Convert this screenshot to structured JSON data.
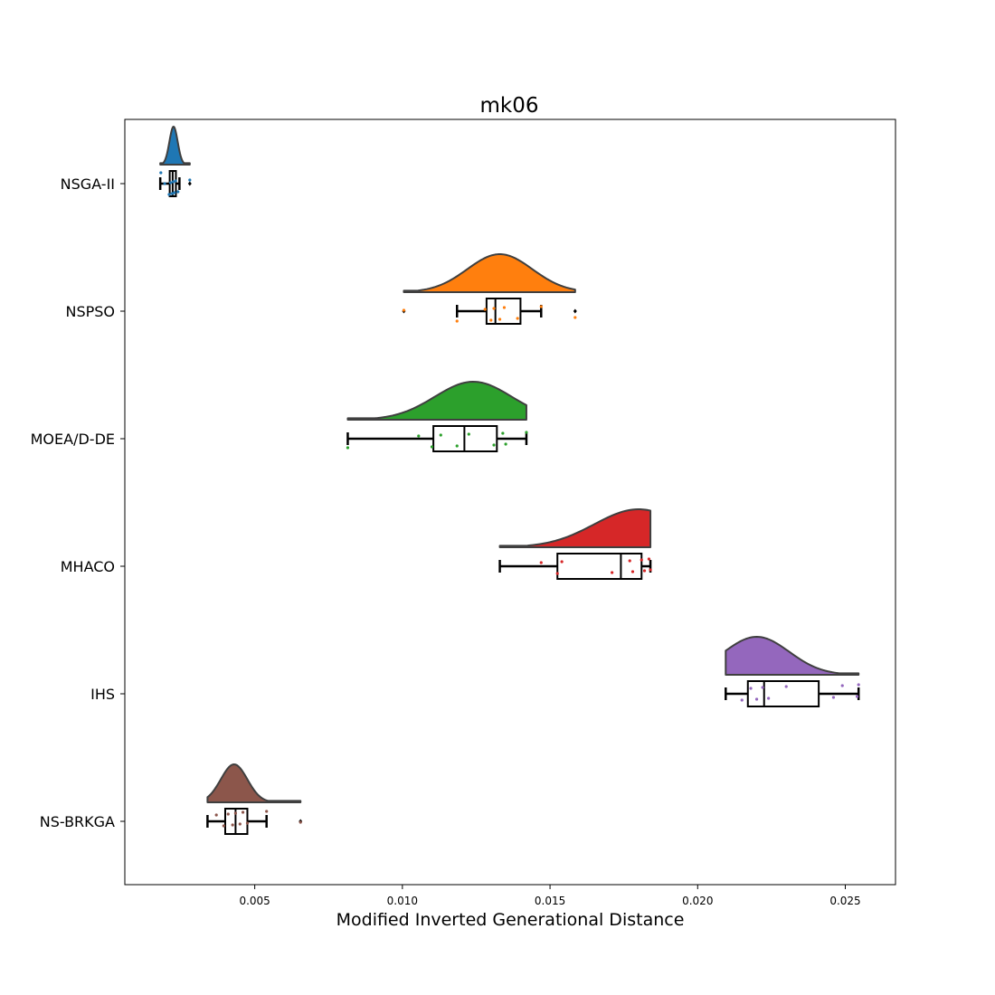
{
  "chart_data": {
    "type": "raincloud",
    "title": "mk06",
    "xlabel": "Modified Inverted Generational Distance",
    "ylabel": "",
    "xlim": [
      0.0006,
      0.0267
    ],
    "x_ticks": [
      0.005,
      0.01,
      0.015,
      0.02,
      0.025
    ],
    "x_tick_labels": [
      "0.005",
      "0.010",
      "0.015",
      "0.020",
      "0.025"
    ],
    "grid": false,
    "series": [
      {
        "name": "NSGA-II",
        "color": "#1f77b4",
        "box": {
          "whisker_low": 0.0018,
          "q1": 0.00212,
          "median": 0.00222,
          "q3": 0.00233,
          "whisker_high": 0.00245
        },
        "outliers": [
          0.0028
        ],
        "violin": {
          "min": 0.0018,
          "max": 0.0028,
          "peak": 0.00225,
          "bw": 0.00014
        },
        "points": [
          0.00182,
          0.00195,
          0.0021,
          0.00215,
          0.0022,
          0.00224,
          0.00228,
          0.00232,
          0.0024,
          0.0028
        ]
      },
      {
        "name": "NSPSO",
        "color": "#ff7f0e",
        "box": {
          "whisker_low": 0.01185,
          "q1": 0.01285,
          "median": 0.01315,
          "q3": 0.014,
          "whisker_high": 0.0147
        },
        "outliers": [
          0.01005,
          0.01585
        ],
        "violin": {
          "min": 0.01005,
          "max": 0.01585,
          "peak": 0.0133,
          "bw": 0.0011
        },
        "points": [
          0.01005,
          0.01185,
          0.0128,
          0.013,
          0.0131,
          0.0133,
          0.01345,
          0.0139,
          0.0147,
          0.01585
        ]
      },
      {
        "name": "MOEA/D-DE",
        "color": "#2ca02c",
        "box": {
          "whisker_low": 0.00815,
          "q1": 0.01105,
          "median": 0.0121,
          "q3": 0.0132,
          "whisker_high": 0.0142
        },
        "outliers": [],
        "violin": {
          "min": 0.00815,
          "max": 0.0142,
          "peak": 0.0124,
          "bw": 0.0013
        },
        "points": [
          0.00815,
          0.01055,
          0.011,
          0.0113,
          0.01185,
          0.01225,
          0.0131,
          0.0134,
          0.0135,
          0.0142
        ]
      },
      {
        "name": "MHACO",
        "color": "#d62728",
        "box": {
          "whisker_low": 0.0133,
          "q1": 0.01525,
          "median": 0.0174,
          "q3": 0.0181,
          "whisker_high": 0.0184
        },
        "outliers": [],
        "violin": {
          "min": 0.0133,
          "max": 0.0184,
          "peak": 0.018,
          "bw": 0.0015
        },
        "points": [
          0.0147,
          0.01525,
          0.0154,
          0.0171,
          0.0177,
          0.0178,
          0.0181,
          0.0182,
          0.01835,
          0.0184
        ]
      },
      {
        "name": "IHS",
        "color": "#9467bd",
        "box": {
          "whisker_low": 0.02095,
          "q1": 0.0217,
          "median": 0.02225,
          "q3": 0.0241,
          "whisker_high": 0.02545
        },
        "outliers": [],
        "violin": {
          "min": 0.02095,
          "max": 0.02545,
          "peak": 0.022,
          "bw": 0.0011
        },
        "points": [
          0.0215,
          0.0218,
          0.022,
          0.0222,
          0.0224,
          0.023,
          0.0246,
          0.0249,
          0.0254,
          0.02545
        ]
      },
      {
        "name": "NS-BRKGA",
        "color": "#8c564b",
        "box": {
          "whisker_low": 0.0034,
          "q1": 0.004,
          "median": 0.00435,
          "q3": 0.00475,
          "whisker_high": 0.0054
        },
        "outliers": [
          0.00655
        ],
        "violin": {
          "min": 0.0034,
          "max": 0.00655,
          "peak": 0.0043,
          "bw": 0.00045
        },
        "points": [
          0.0037,
          0.00395,
          0.0041,
          0.00425,
          0.00435,
          0.0045,
          0.0046,
          0.00475,
          0.0054,
          0.00655
        ]
      }
    ]
  }
}
